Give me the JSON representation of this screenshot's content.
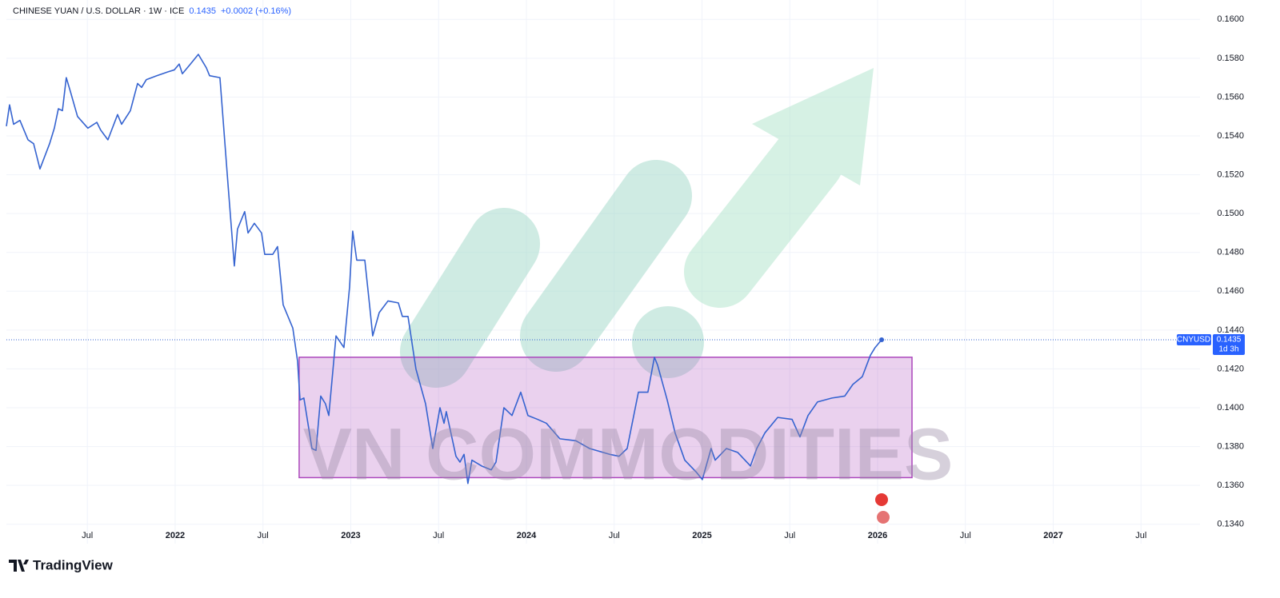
{
  "chart_data": {
    "type": "line",
    "header": {
      "symbol": "CHINESE YUAN / U.S. DOLLAR · 1W · ICE",
      "price": "0.1435",
      "change": "+0.0002 (+0.16%)"
    },
    "x": [
      2021.039,
      2021.057,
      2021.08,
      2021.116,
      2021.162,
      2021.194,
      2021.23,
      2021.285,
      2021.312,
      2021.335,
      2021.358,
      2021.38,
      2021.403,
      2021.444,
      2021.503,
      2021.554,
      2021.576,
      2021.617,
      2021.672,
      2021.695,
      2021.745,
      2021.786,
      2021.809,
      2021.836,
      2021.895,
      2021.959,
      2021.995,
      2022.023,
      2022.041,
      2022.087,
      2022.132,
      2022.178,
      2022.196,
      2022.255,
      2022.301,
      2022.337,
      2022.355,
      2022.396,
      2022.415,
      2022.451,
      2022.492,
      2022.51,
      2022.556,
      2022.583,
      2022.615,
      2022.67,
      2022.697,
      2022.711,
      2022.733,
      2022.779,
      2022.802,
      2022.829,
      2022.856,
      2022.875,
      2022.916,
      2022.961,
      2022.993,
      2023.011,
      2023.034,
      2023.08,
      2023.107,
      2023.125,
      2023.162,
      2023.212,
      2023.271,
      2023.294,
      2023.326,
      2023.371,
      2023.426,
      2023.467,
      2023.508,
      2023.531,
      2023.544,
      2023.599,
      2023.622,
      2023.645,
      2023.667,
      2023.69,
      2023.745,
      2023.8,
      2023.827,
      2023.872,
      2023.918,
      2023.968,
      2024.009,
      2024.064,
      2024.114,
      2024.191,
      2024.282,
      2024.36,
      2024.474,
      2024.528,
      2024.574,
      2024.638,
      2024.692,
      2024.729,
      2024.747,
      2024.802,
      2024.847,
      2024.902,
      2024.966,
      2025.002,
      2025.052,
      2025.075,
      2025.139,
      2025.203,
      2025.276,
      2025.312,
      2025.358,
      2025.431,
      2025.513,
      2025.558,
      2025.604,
      2025.658,
      2025.74,
      2025.813,
      2025.859,
      2025.913,
      2025.959,
      2025.986,
      2026.023
    ],
    "series": [
      {
        "name": "CNYUSD",
        "color": "#3563d0",
        "values": [
          0.1545,
          0.1556,
          0.1546,
          0.1548,
          0.1538,
          0.1536,
          0.1523,
          0.1536,
          0.1544,
          0.1554,
          0.1553,
          0.157,
          0.1563,
          0.155,
          0.1544,
          0.1547,
          0.1543,
          0.1538,
          0.1551,
          0.1546,
          0.1553,
          0.1567,
          0.1565,
          0.1569,
          0.1571,
          0.1573,
          0.1574,
          0.1577,
          0.1572,
          0.1577,
          0.1582,
          0.1575,
          0.1571,
          0.157,
          0.1515,
          0.1473,
          0.1492,
          0.1501,
          0.149,
          0.1495,
          0.149,
          0.1479,
          0.1479,
          0.1483,
          0.1453,
          0.1441,
          0.1424,
          0.1404,
          0.1405,
          0.1379,
          0.1378,
          0.1406,
          0.1402,
          0.1396,
          0.1437,
          0.1431,
          0.1462,
          0.1491,
          0.1476,
          0.1476,
          0.1453,
          0.1437,
          0.1449,
          0.1455,
          0.1454,
          0.1447,
          0.1447,
          0.142,
          0.1402,
          0.1379,
          0.14,
          0.1392,
          0.1398,
          0.1375,
          0.1372,
          0.1376,
          0.1361,
          0.1373,
          0.137,
          0.1368,
          0.1372,
          0.14,
          0.1396,
          0.1408,
          0.1396,
          0.1394,
          0.1392,
          0.1384,
          0.1383,
          0.1379,
          0.1376,
          0.1375,
          0.1379,
          0.1408,
          0.1408,
          0.1426,
          0.1422,
          0.1404,
          0.1387,
          0.1373,
          0.1367,
          0.1363,
          0.1379,
          0.1373,
          0.1379,
          0.1377,
          0.137,
          0.1379,
          0.1387,
          0.1395,
          0.1394,
          0.1385,
          0.1396,
          0.1403,
          0.1405,
          0.1406,
          0.1412,
          0.1416,
          0.1427,
          0.1431,
          0.1435
        ]
      }
    ],
    "xlim": [
      2021.039,
      2027.836
    ],
    "ylim": [
      0.133,
      0.161
    ],
    "xticks": [
      {
        "value": 2021.5,
        "label": "Jul"
      },
      2022,
      {
        "value": 2022.5,
        "label": "Jul"
      },
      2023,
      {
        "value": 2023.5,
        "label": "Jul"
      },
      2024,
      {
        "value": 2024.5,
        "label": "Jul"
      },
      2025,
      {
        "value": 2025.5,
        "label": "Jul"
      },
      2026,
      {
        "value": 2026.5,
        "label": "Jul"
      },
      2027,
      {
        "value": 2027.5,
        "label": "Jul"
      }
    ],
    "yticks": [
      {
        "value": 0.134,
        "label": "0.1340"
      },
      {
        "value": 0.136,
        "label": "0.1360"
      },
      {
        "value": 0.138,
        "label": "0.1380"
      },
      {
        "value": 0.14,
        "label": "0.1400"
      },
      {
        "value": 0.142,
        "label": "0.1420"
      },
      {
        "value": 0.144,
        "label": "0.1440"
      },
      {
        "value": 0.146,
        "label": "0.1460"
      },
      {
        "value": 0.148,
        "label": "0.1480"
      },
      {
        "value": 0.15,
        "label": "0.1500"
      },
      {
        "value": 0.152,
        "label": "0.1520"
      },
      {
        "value": 0.154,
        "label": "0.1540"
      },
      {
        "value": 0.156,
        "label": "0.1560"
      },
      {
        "value": 0.158,
        "label": "0.1580"
      },
      {
        "value": 0.16,
        "label": "0.1600"
      }
    ],
    "grid": true,
    "highlight_box": {
      "x": [
        2022.706,
        2026.196
      ],
      "y": [
        0.1364,
        0.1426
      ],
      "color": "#ab47bc"
    },
    "countdown": "1d 3h",
    "watermark": "VN COMMODITIES",
    "brand": "TradingView"
  }
}
